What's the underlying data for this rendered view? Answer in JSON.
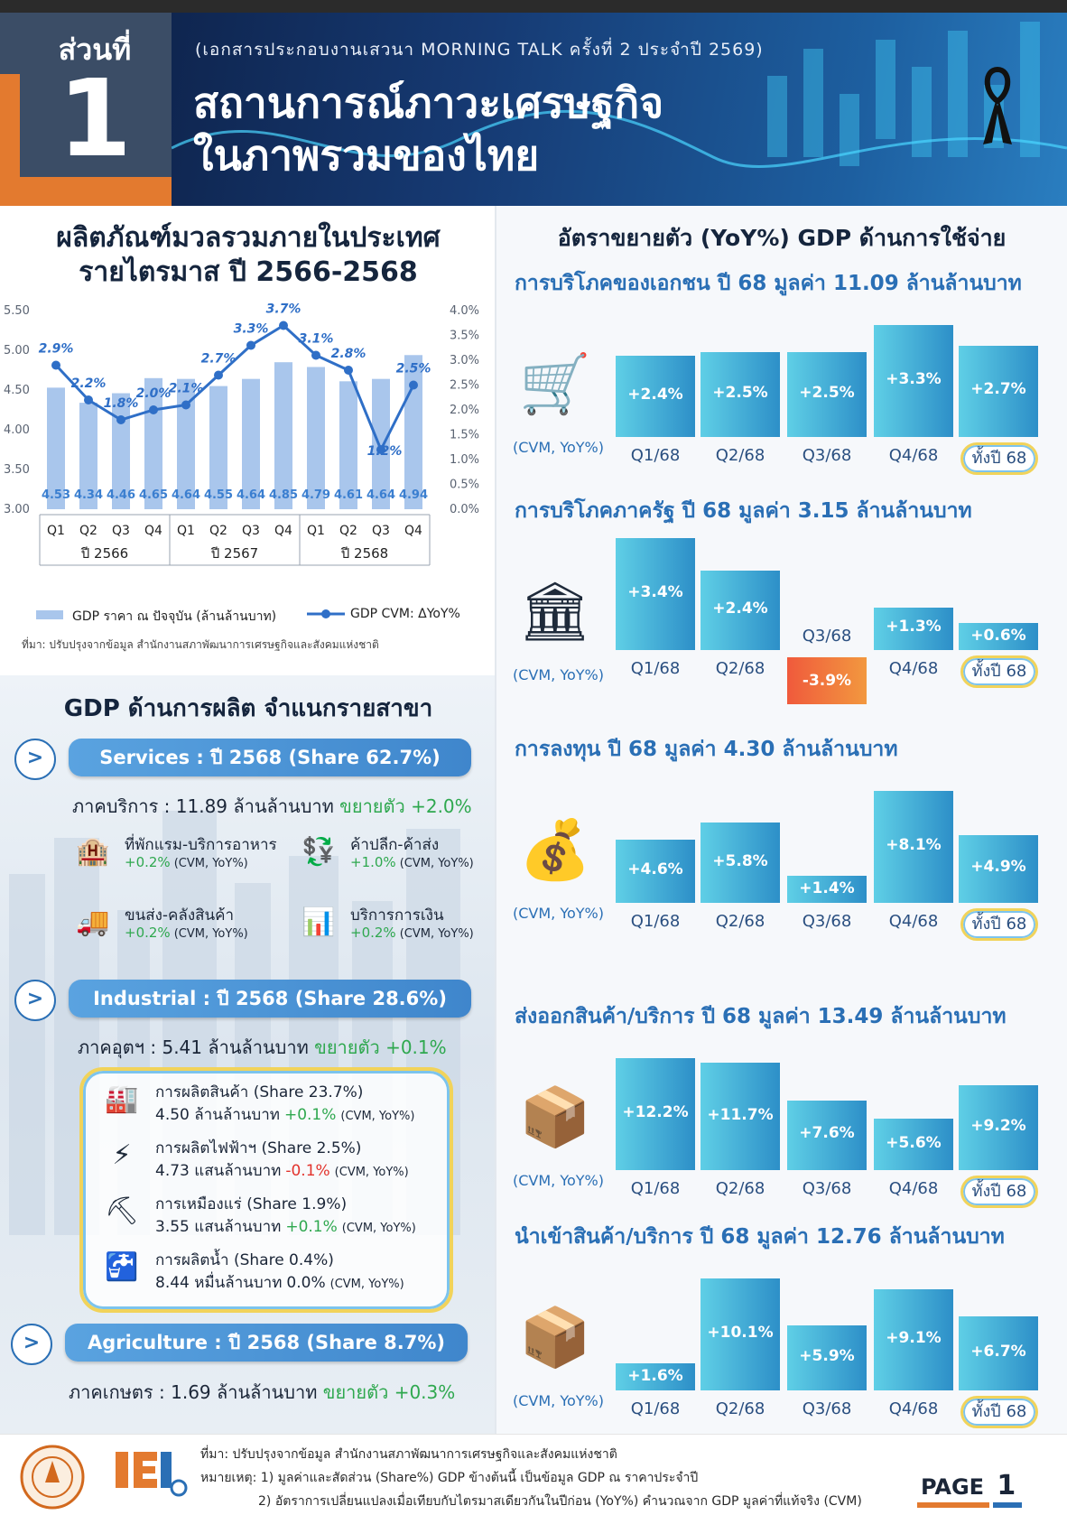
{
  "header": {
    "section_label": "ส่วนที่",
    "section_number": "1",
    "subtitle": "(เอกสารประกอบงานเสวนา MORNING TALK ครั้งที่ 2 ประจำปี 2569)",
    "title_line1": "สถานการณ์ภาวะเศรษฐกิจ",
    "title_line2": "ในภาพรวมของไทย"
  },
  "gdp_quarterly": {
    "title_line1": "ผลิตภัณฑ์มวลรวมภายในประเทศ",
    "title_line2": "รายไตรมาส ปี 2566-2568",
    "source": "ที่มา: ปรับปรุงจากข้อมูล สำนักงานสภาพัฒนาการเศรษฐกิจและสังคมแห่งชาติ"
  },
  "chart_data": {
    "type": "bar",
    "categories": [
      "Q1",
      "Q2",
      "Q3",
      "Q4",
      "Q1",
      "Q2",
      "Q3",
      "Q4",
      "Q1",
      "Q2",
      "Q3",
      "Q4"
    ],
    "year_groups": [
      "ปี 2566",
      "ปี 2567",
      "ปี 2568"
    ],
    "series": [
      {
        "name": "GDP ราคา ณ ปัจจุบัน (ล้านล้านบาท)",
        "kind": "bar",
        "axis": "left",
        "values": [
          4.53,
          4.34,
          4.46,
          4.65,
          4.64,
          4.55,
          4.64,
          4.85,
          4.79,
          4.61,
          4.64,
          4.94
        ],
        "labels": [
          "4.53",
          "4.34",
          "4.46",
          "4.65",
          "4.64",
          "4.55",
          "4.64",
          "4.85",
          "4.79",
          "4.61",
          "4.64",
          "4.94"
        ]
      },
      {
        "name": "GDP CVM: ΔYoY%",
        "kind": "line",
        "axis": "right",
        "values": [
          2.9,
          2.2,
          1.8,
          2.0,
          2.1,
          2.7,
          3.3,
          3.7,
          3.1,
          2.8,
          1.2,
          2.5
        ],
        "labels": [
          "2.9%",
          "2.2%",
          "1.8%",
          "2.0%",
          "2.1%",
          "2.7%",
          "3.3%",
          "3.7%",
          "3.1%",
          "2.8%",
          "1.2%",
          "2.5%"
        ]
      }
    ],
    "y_left": {
      "ticks": [
        "5.50",
        "5.00",
        "4.50",
        "4.00",
        "3.50",
        "3.00"
      ],
      "range": [
        3.0,
        5.5
      ]
    },
    "y_right": {
      "ticks": [
        "4.0%",
        "3.5%",
        "3.0%",
        "2.5%",
        "2.0%",
        "1.5%",
        "1.0%",
        "0.5%",
        "0.0%"
      ],
      "range": [
        0,
        4
      ]
    },
    "legend_bar": "GDP ราคา ณ ปัจจุบัน (ล้านล้านบาท)",
    "legend_line": "GDP CVM: ΔYoY%",
    "legend_position": "bottom"
  },
  "production": {
    "title": "GDP ด้านการผลิต จำแนกรายสาขา",
    "arrow": ">",
    "services": {
      "pill": "Services : ปี 2568 (Share 62.7%)",
      "line_prefix": "ภาคบริการ : 11.89 ล้านล้านบาท",
      "line_growth": "ขยายตัว +2.0%",
      "items": [
        {
          "name": "ที่พักแรม-บริการอาหาร",
          "value": "+0.2%",
          "note": "(CVM, YoY%)",
          "icon": "hotel-icon"
        },
        {
          "name": "ค้าปลีก-ค้าส่ง",
          "value": "+1.0%",
          "note": "(CVM, YoY%)",
          "icon": "trade-icon"
        },
        {
          "name": "ขนส่ง-คลังสินค้า",
          "value": "+0.2%",
          "note": "(CVM, YoY%)",
          "icon": "truck-icon"
        },
        {
          "name": "บริการการเงิน",
          "value": "+0.2%",
          "note": "(CVM, YoY%)",
          "icon": "finance-icon"
        }
      ]
    },
    "industrial": {
      "pill": "Industrial : ปี 2568 (Share 28.6%)",
      "line_prefix": "ภาคอุตฯ : 5.41 ล้านล้านบาท",
      "line_growth": "ขยายตัว +0.1%",
      "items": [
        {
          "name": "การผลิตสินค้า (Share 23.7%)",
          "amount": "4.50 ล้านล้านบาท",
          "value": "+0.1%",
          "note": "(CVM, YoY%)",
          "neg": false
        },
        {
          "name": "การผลิตไฟฟ้าฯ (Share 2.5%)",
          "amount": "4.73 แสนล้านบาท",
          "value": "-0.1%",
          "note": "(CVM, YoY%)",
          "neg": true
        },
        {
          "name": "การเหมืองแร่ (Share 1.9%)",
          "amount": "3.55 แสนล้านบาท",
          "value": "+0.1%",
          "note": "(CVM, YoY%)",
          "neg": false
        },
        {
          "name": "การผลิตน้ำ (Share 0.4%)",
          "amount": "8.44 หมื่นล้านบาท",
          "value": "0.0%",
          "note": "(CVM, YoY%)",
          "neg": false
        }
      ]
    },
    "agriculture": {
      "pill": "Agriculture : ปี 2568 (Share 8.7%)",
      "line_prefix": "ภาคเกษตร : 1.69 ล้านล้านบาท",
      "line_growth": "ขยายตัว +0.3%"
    }
  },
  "expenditure": {
    "title": "อัตราขยายตัว (YoY%) GDP ด้านการใช้จ่าย",
    "cvm_label": "(CVM, YoY%)",
    "quarters": [
      "Q1/68",
      "Q2/68",
      "Q3/68",
      "Q4/68"
    ],
    "annual_label": "ทั้งปี 68",
    "sections": [
      {
        "title": "การบริโภคของเอกชน ปี 68 มูลค่า 11.09 ล้านล้านบาท",
        "values": [
          2.4,
          2.5,
          2.5,
          3.3,
          2.7
        ],
        "labels": [
          "+2.4%",
          "+2.5%",
          "+2.5%",
          "+3.3%",
          "+2.7%"
        ]
      },
      {
        "title": "การบริโภคภาครัฐ ปี 68 มูลค่า 3.15 ล้านล้านบาท",
        "values": [
          3.4,
          2.4,
          -3.9,
          1.3,
          0.6
        ],
        "labels": [
          "+3.4%",
          "+2.4%",
          "-3.9%",
          "+1.3%",
          "+0.6%"
        ]
      },
      {
        "title": "การลงทุน ปี 68 มูลค่า 4.30 ล้านล้านบาท",
        "values": [
          4.6,
          5.8,
          1.4,
          8.1,
          4.9
        ],
        "labels": [
          "+4.6%",
          "+5.8%",
          "+1.4%",
          "+8.1%",
          "+4.9%"
        ]
      },
      {
        "title": "ส่งออกสินค้า/บริการ ปี 68 มูลค่า 13.49 ล้านล้านบาท",
        "values": [
          12.2,
          11.7,
          7.6,
          5.6,
          9.2
        ],
        "labels": [
          "+12.2%",
          "+11.7%",
          "+7.6%",
          "+5.6%",
          "+9.2%"
        ]
      },
      {
        "title": "นำเข้าสินค้า/บริการ ปี 68 มูลค่า 12.76 ล้านล้านบาท",
        "values": [
          1.6,
          10.1,
          5.9,
          9.1,
          6.7
        ],
        "labels": [
          "+1.6%",
          "+10.1%",
          "+5.9%",
          "+9.1%",
          "+6.7%"
        ]
      }
    ]
  },
  "footer": {
    "source": "ที่มา: ปรับปรุงจากข้อมูล สำนักงานสภาพัฒนาการเศรษฐกิจและสังคมแห่งชาติ",
    "note1": "หมายเหตุ: 1) มูลค่าและสัดส่วน (Share%) GDP ข้างต้นนี้ เป็นข้อมูล GDP ณ ราคาประจำปี",
    "note2": "2) อัตราการเปลี่ยนแปลงเมื่อเทียบกับไตรมาสเดียวกันในปีก่อน (YoY%) คำนวณจาก GDP มูลค่าที่แท้จริง (CVM)",
    "page": "PAGE",
    "page_num": "1"
  },
  "colors": {
    "accent": "#2a6fb5",
    "positive": "#2fa84f",
    "negative": "#e2332d",
    "orange": "#e37a2f"
  }
}
